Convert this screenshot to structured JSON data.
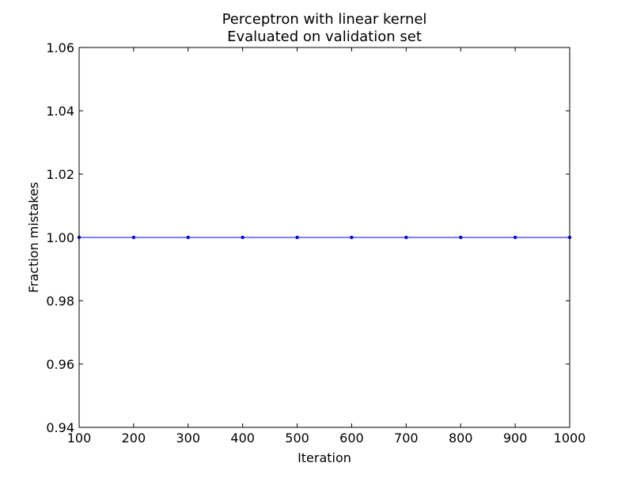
{
  "chart_data": {
    "type": "line",
    "title": "Perceptron with linear kernel",
    "subtitle": "Evaluated on validation set",
    "xlabel": "Iteration",
    "ylabel": "Fraction mistakes",
    "xlim": [
      100,
      1000
    ],
    "ylim": [
      0.94,
      1.06
    ],
    "xticks": [
      100,
      200,
      300,
      400,
      500,
      600,
      700,
      800,
      900,
      1000
    ],
    "yticks": [
      0.94,
      0.96,
      0.98,
      1.0,
      1.02,
      1.04,
      1.06
    ],
    "ytick_labels": [
      "0.94",
      "0.96",
      "0.98",
      "1.00",
      "1.02",
      "1.04",
      "1.06"
    ],
    "grid": false,
    "series": [
      {
        "x": [
          100,
          200,
          300,
          400,
          500,
          600,
          700,
          800,
          900,
          1000
        ],
        "y": [
          1.0,
          1.0,
          1.0,
          1.0,
          1.0,
          1.0,
          1.0,
          1.0,
          1.0,
          1.0
        ],
        "color": "#0000ff",
        "marker": "dot"
      }
    ]
  }
}
